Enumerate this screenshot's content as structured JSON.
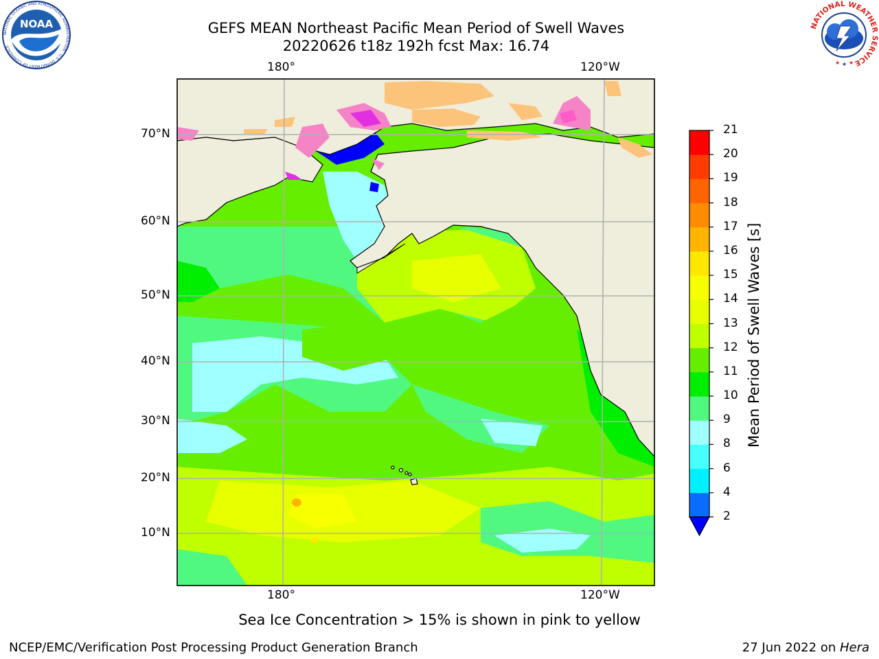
{
  "header": {
    "title": "GEFS MEAN Northeast Pacific Mean Period of Swell Waves",
    "subtitle": "20220626 t18z 192h fcst   Max: 16.74"
  },
  "logos": {
    "noaa_text": "NOAA",
    "noaa_ring": "NATIONAL OCEANIC AND ATMOSPHERIC ADMINISTRATION · U.S. DEPARTMENT OF COMMERCE",
    "nws_ring": "NATIONAL WEATHER SERVICE"
  },
  "map": {
    "lon_labels_top": [
      "180°",
      "120°W"
    ],
    "lon_labels_bottom": [
      "180°",
      "120°W"
    ],
    "lat_labels": [
      "70°N",
      "60°N",
      "50°N",
      "40°N",
      "30°N",
      "20°N",
      "10°N"
    ],
    "max_value": 16.74,
    "colors": {
      "land": "#efeedd",
      "ice_pink": "#f584c6",
      "ice_orange": "#fcc47a",
      "grid": "#b0b0b0"
    }
  },
  "colorbar": {
    "label": "Mean Period of Swell Waves [s]",
    "ticks": [
      "2",
      "4",
      "6",
      "8",
      "9",
      "10",
      "11",
      "12",
      "13",
      "14",
      "15",
      "16",
      "17",
      "18",
      "19",
      "20",
      "21"
    ],
    "colors": [
      "#0a6cff",
      "#00f0ff",
      "#48ffff",
      "#a0ffff",
      "#50f880",
      "#00ee00",
      "#66ee00",
      "#c0ff00",
      "#e8ff00",
      "#f8ff00",
      "#ffe800",
      "#ffb400",
      "#ff8c00",
      "#ff6400",
      "#ff3c00",
      "#ff0000"
    ],
    "under_color": "#0000ff"
  },
  "note": "Sea Ice Concentration > 15% is shown in pink to yellow",
  "footer": {
    "left": "NCEP/EMC/Verification Post Processing Product Generation Branch",
    "right_prefix": "27 Jun 2022 on ",
    "right_host": "Hera"
  }
}
